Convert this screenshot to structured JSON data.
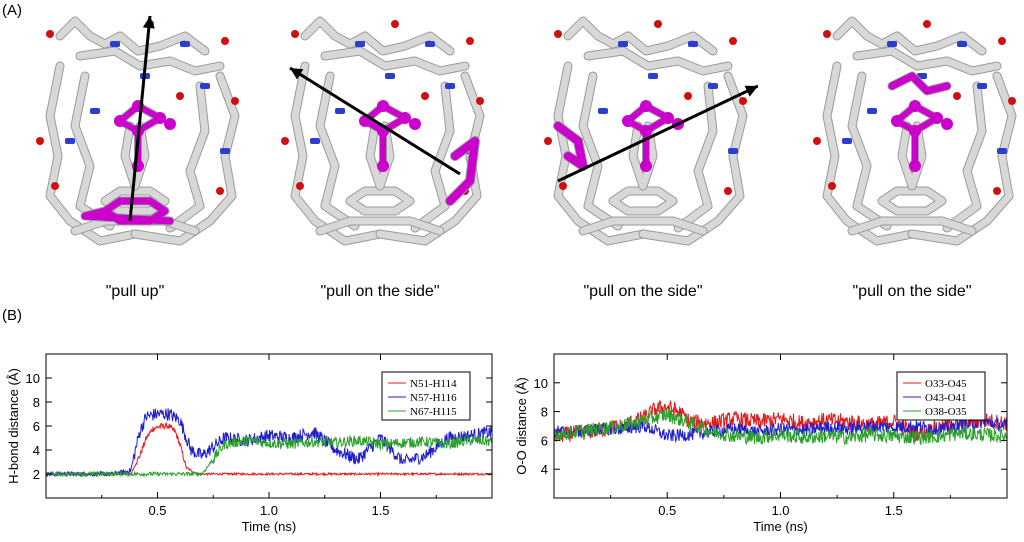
{
  "panel_a": {
    "label": "(A)",
    "captions": [
      "\"pull up\"",
      "\"pull on the side\"",
      "\"pull on the side\"",
      "\"pull on the side\""
    ],
    "colors": {
      "cage": "#d8d8d8",
      "cage_edge": "#9a9a9a",
      "guest": "#cc00cc",
      "nitrogen": "#2a3fd0",
      "oxygen": "#d01010",
      "arrow": "#000000"
    }
  },
  "panel_b": {
    "label": "(B)"
  },
  "chart_data": [
    {
      "type": "line",
      "title": "",
      "xlabel": "Time (ns)",
      "ylabel": "H-bond distance (Å)",
      "xlim": [
        0,
        2.0
      ],
      "ylim": [
        0,
        12
      ],
      "xticks": [
        0.5,
        1.0,
        1.5
      ],
      "xtick_labels": [
        "0.5",
        "1.0",
        "1.5"
      ],
      "yticks": [
        2,
        4,
        6,
        8,
        10
      ],
      "ytick_labels": [
        "2",
        "4",
        "6",
        "8",
        "10"
      ],
      "legend": "top-right",
      "grid": false,
      "series": [
        {
          "name": "N51-H114",
          "color": "#e41a1c",
          "x": [
            0,
            0.1,
            0.2,
            0.3,
            0.38,
            0.42,
            0.45,
            0.48,
            0.52,
            0.55,
            0.58,
            0.6,
            0.63,
            0.68,
            0.75,
            0.9,
            1.0,
            1.2,
            1.4,
            1.6,
            1.8,
            2.0
          ],
          "y": [
            2.0,
            2.0,
            2.0,
            2.0,
            2.0,
            3.5,
            5.0,
            5.8,
            6.0,
            6.0,
            5.5,
            4.5,
            2.5,
            2.0,
            2.0,
            2.0,
            2.0,
            2.0,
            2.0,
            2.0,
            2.0,
            2.0
          ]
        },
        {
          "name": "N57-H116",
          "color": "#1f1fd0",
          "x": [
            0,
            0.1,
            0.2,
            0.3,
            0.38,
            0.42,
            0.45,
            0.5,
            0.55,
            0.6,
            0.65,
            0.7,
            0.8,
            0.9,
            1.0,
            1.1,
            1.2,
            1.3,
            1.4,
            1.5,
            1.6,
            1.7,
            1.8,
            1.9,
            2.0
          ],
          "y": [
            2.0,
            2.0,
            2.0,
            2.0,
            2.3,
            5.5,
            6.8,
            7.0,
            7.0,
            6.5,
            4.0,
            3.5,
            5.0,
            4.8,
            5.2,
            5.0,
            5.5,
            4.0,
            3.2,
            5.0,
            3.0,
            3.5,
            5.0,
            5.2,
            5.5
          ]
        },
        {
          "name": "N67-H115",
          "color": "#2ca02c",
          "x": [
            0,
            0.1,
            0.2,
            0.3,
            0.4,
            0.5,
            0.6,
            0.7,
            0.76,
            0.8,
            0.9,
            1.0,
            1.1,
            1.2,
            1.3,
            1.4,
            1.5,
            1.6,
            1.7,
            1.8,
            1.9,
            2.0
          ],
          "y": [
            2.0,
            2.0,
            2.0,
            2.0,
            2.0,
            2.0,
            2.0,
            2.0,
            3.5,
            4.5,
            4.8,
            4.6,
            4.5,
            4.7,
            4.6,
            4.8,
            4.5,
            4.6,
            4.7,
            4.5,
            4.8,
            4.7
          ]
        }
      ]
    },
    {
      "type": "line",
      "title": "",
      "xlabel": "Time (ns)",
      "ylabel": "O-O distance (Å)",
      "xlim": [
        0,
        2.0
      ],
      "ylim": [
        2,
        12
      ],
      "xticks": [
        0.5,
        1.0,
        1.5
      ],
      "xtick_labels": [
        "0.5",
        "1.0",
        "1.5"
      ],
      "yticks": [
        4,
        6,
        8,
        10
      ],
      "ytick_labels": [
        "4",
        "6",
        "8",
        "10"
      ],
      "legend": "top-right",
      "grid": false,
      "series": [
        {
          "name": "O33-O45",
          "color": "#e41a1c",
          "x": [
            0,
            0.1,
            0.2,
            0.3,
            0.4,
            0.45,
            0.5,
            0.55,
            0.6,
            0.7,
            0.8,
            0.9,
            1.0,
            1.1,
            1.2,
            1.3,
            1.4,
            1.5,
            1.6,
            1.7,
            1.8,
            1.9,
            2.0
          ],
          "y": [
            6.3,
            6.5,
            6.7,
            7.0,
            7.6,
            8.2,
            8.3,
            8.0,
            7.3,
            7.2,
            7.5,
            7.3,
            7.5,
            7.2,
            7.4,
            7.3,
            7.1,
            7.3,
            6.5,
            6.9,
            7.3,
            7.4,
            7.2
          ]
        },
        {
          "name": "O43-O41",
          "color": "#1f1fd0",
          "x": [
            0,
            0.1,
            0.2,
            0.3,
            0.4,
            0.5,
            0.6,
            0.7,
            0.8,
            0.9,
            1.0,
            1.1,
            1.2,
            1.3,
            1.4,
            1.5,
            1.6,
            1.7,
            1.8,
            1.9,
            2.0
          ],
          "y": [
            6.6,
            6.6,
            6.8,
            6.8,
            7.0,
            6.3,
            6.4,
            6.6,
            6.8,
            6.6,
            6.8,
            6.7,
            6.9,
            6.8,
            7.0,
            6.9,
            7.0,
            6.8,
            7.0,
            7.3,
            7.0
          ]
        },
        {
          "name": "O38-O35",
          "color": "#2ca02c",
          "x": [
            0,
            0.1,
            0.2,
            0.3,
            0.4,
            0.5,
            0.6,
            0.7,
            0.8,
            0.9,
            1.0,
            1.1,
            1.2,
            1.3,
            1.4,
            1.5,
            1.6,
            1.7,
            1.8,
            1.9,
            2.0
          ],
          "y": [
            6.4,
            6.6,
            6.8,
            7.0,
            7.4,
            7.8,
            7.2,
            6.6,
            6.3,
            6.2,
            6.4,
            6.2,
            6.3,
            6.2,
            6.4,
            6.3,
            6.2,
            6.3,
            6.5,
            6.4,
            6.3
          ]
        }
      ]
    }
  ]
}
